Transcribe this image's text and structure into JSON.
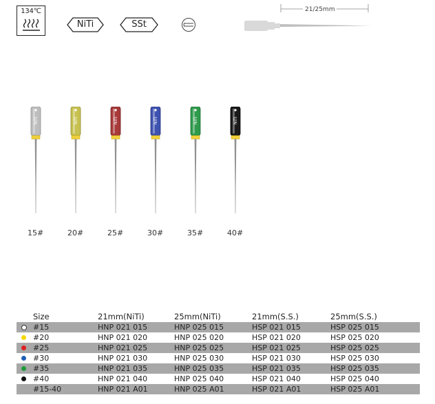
{
  "header": {
    "sterilization_temp": "134℃",
    "material_niti": "NiTi",
    "material_sst": "SSt",
    "length_label": "21/25mm"
  },
  "files": [
    {
      "size": "15#",
      "color": "#bdbdbd",
      "dark": "#8e8e8e"
    },
    {
      "size": "20#",
      "color": "#c7c151",
      "dark": "#8f8a2e"
    },
    {
      "size": "25#",
      "color": "#a83a3a",
      "dark": "#6e1f1f"
    },
    {
      "size": "30#",
      "color": "#3e52b0",
      "dark": "#23307a"
    },
    {
      "size": "35#",
      "color": "#2f9a4c",
      "dark": "#1b6a31"
    },
    {
      "size": "40#",
      "color": "#1a1a1a",
      "dark": "#000000"
    }
  ],
  "handle_text": "NiTi",
  "table": {
    "columns": [
      "Size",
      "21mm(NiTi)",
      "25mm(NiTi)",
      "21mm(S.S.)",
      "25mm(S.S.)"
    ],
    "rows": [
      {
        "dot": "#ffffff",
        "size": "#15",
        "c1": "HNP 021 015",
        "c2": "HNP 025 015",
        "c3": "HSP 021 015",
        "c4": "HSP 025 015"
      },
      {
        "dot": "#f5d800",
        "size": "#20",
        "c1": "HNP 021 020",
        "c2": "HNP 025 020",
        "c3": "HSP 021 020",
        "c4": "HSP 025 020"
      },
      {
        "dot": "#e01f1f",
        "size": "#25",
        "c1": "HNP 021 025",
        "c2": "HNP 025 025",
        "c3": "HSP 021 025",
        "c4": "HSP 025 025"
      },
      {
        "dot": "#1f5fb8",
        "size": "#30",
        "c1": "HNP 021 030",
        "c2": "HNP 025 030",
        "c3": "HSP 021 030",
        "c4": "HSP 025 030"
      },
      {
        "dot": "#1f9a3a",
        "size": "#35",
        "c1": "HNP 021 035",
        "c2": "HNP 025 035",
        "c3": "HSP 021 035",
        "c4": "HSP 025 035"
      },
      {
        "dot": "#111111",
        "size": "#40",
        "c1": "HNP 021 040",
        "c2": "HNP 025 040",
        "c3": "HSP 021 040",
        "c4": "HSP 025 040"
      },
      {
        "dot": "",
        "size": "#15-40",
        "c1": "HNP 021 A01",
        "c2": "HNP 025 A01",
        "c3": "HSP 021 A01",
        "c4": "HSP 025 A01"
      }
    ]
  }
}
